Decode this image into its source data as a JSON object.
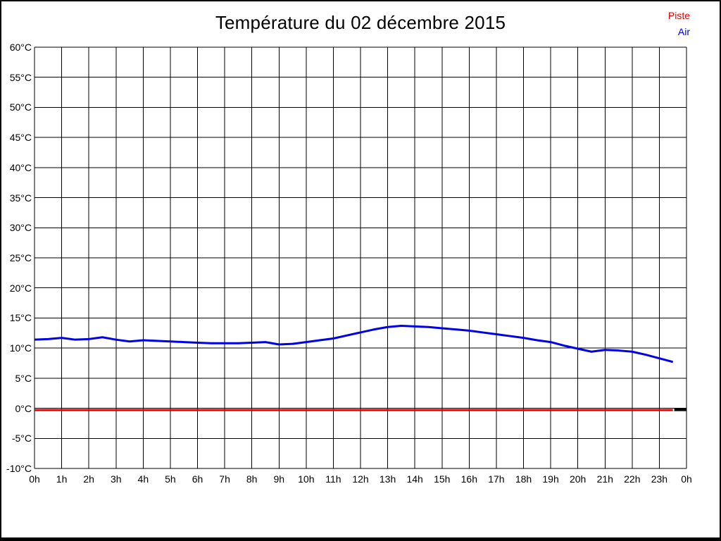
{
  "title": "Température du 02 décembre 2015",
  "legend": {
    "items": [
      {
        "label": "Piste",
        "color": "#e60000"
      },
      {
        "label": "Air",
        "color": "#0000e6"
      }
    ]
  },
  "chart_data": {
    "type": "line",
    "title": "Température du 02 décembre 2015",
    "xlabel": "",
    "ylabel": "",
    "x_unit": "hour",
    "y_unit": "°C",
    "xlim": [
      0,
      24
    ],
    "ylim": [
      -10,
      60
    ],
    "grid": true,
    "grid_color": "#000000",
    "background_color": "#ffffff",
    "legend_position": "top-right",
    "xticks": {
      "values": [
        0,
        1,
        2,
        3,
        4,
        5,
        6,
        7,
        8,
        9,
        10,
        11,
        12,
        13,
        14,
        15,
        16,
        17,
        18,
        19,
        20,
        21,
        22,
        23,
        24
      ],
      "labels": [
        "0h",
        "1h",
        "2h",
        "3h",
        "4h",
        "5h",
        "6h",
        "7h",
        "8h",
        "9h",
        "10h",
        "11h",
        "12h",
        "13h",
        "14h",
        "15h",
        "16h",
        "17h",
        "18h",
        "19h",
        "20h",
        "21h",
        "22h",
        "23h",
        "0h"
      ]
    },
    "yticks": {
      "values": [
        60,
        55,
        50,
        45,
        40,
        35,
        30,
        25,
        20,
        15,
        10,
        5,
        0,
        -5,
        -10
      ],
      "labels": [
        "60°C",
        "55°C",
        "50°C",
        "45°C",
        "40°C",
        "35°C",
        "30°C",
        "25°C",
        "20°C",
        "15°C",
        "10°C",
        "5°C",
        "0°C",
        "-5°C",
        "-10°C"
      ]
    },
    "x": [
      0,
      0.5,
      1,
      1.5,
      2,
      2.5,
      3,
      3.5,
      4,
      4.5,
      5,
      5.5,
      6,
      6.5,
      7,
      7.5,
      8,
      8.5,
      9,
      9.5,
      10,
      10.5,
      11,
      11.5,
      12,
      12.5,
      13,
      13.5,
      14,
      14.5,
      15,
      15.5,
      16,
      16.5,
      17,
      17.5,
      18,
      18.5,
      19,
      19.5,
      20,
      20.5,
      21,
      21.5,
      22,
      22.5,
      23,
      23.5
    ],
    "series": [
      {
        "name": "Piste",
        "color": "#e60000",
        "width": 3,
        "values": [
          0,
          0,
          0,
          0,
          0,
          0,
          0,
          0,
          0,
          0,
          0,
          0,
          0,
          0,
          0,
          0,
          0,
          0,
          0,
          0,
          0,
          0,
          0,
          0,
          0,
          0,
          0,
          0,
          0,
          0,
          0,
          0,
          0,
          0,
          0,
          0,
          0,
          0,
          0,
          0,
          0,
          0,
          0,
          0,
          0,
          0,
          0,
          0
        ]
      },
      {
        "name": "Air",
        "color": "#0000e6",
        "width": 3,
        "values": [
          11.4,
          11.5,
          11.7,
          11.4,
          11.5,
          11.8,
          11.4,
          11.1,
          11.3,
          11.2,
          11.1,
          11.0,
          10.9,
          10.8,
          10.8,
          10.8,
          10.9,
          11.0,
          10.6,
          10.7,
          11.0,
          11.3,
          11.6,
          12.1,
          12.6,
          13.1,
          13.5,
          13.7,
          13.6,
          13.5,
          13.3,
          13.1,
          12.9,
          12.6,
          12.3,
          12.0,
          11.7,
          11.3,
          11.0,
          10.4,
          9.9,
          9.4,
          9.7,
          9.6,
          9.4,
          8.9,
          8.3,
          7.7
        ]
      }
    ],
    "zero_trailing_segment": {
      "from": 23.55,
      "to": 24,
      "value": 0,
      "color": "#000000",
      "width": 4
    }
  }
}
